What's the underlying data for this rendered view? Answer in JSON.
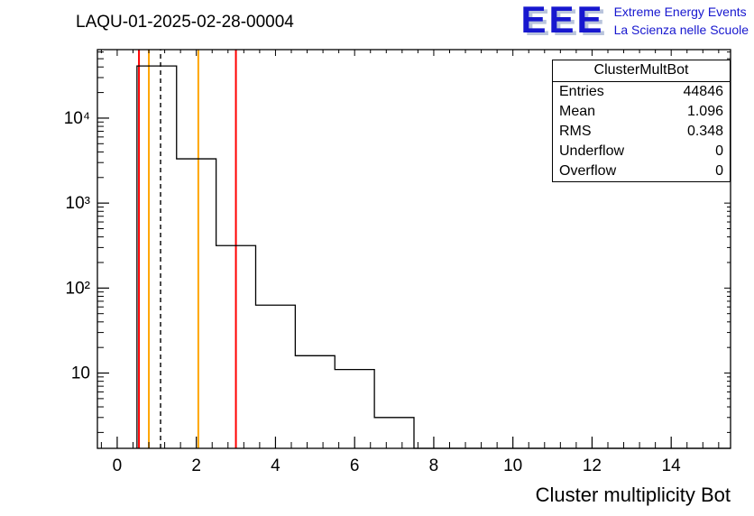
{
  "header": {
    "title": "LAQU-01-2025-02-28-00004",
    "logo": {
      "acronym": "EEE",
      "line1": "Extreme Energy Events",
      "line2": "La Scienza nelle Scuole",
      "color": "#1717cf"
    }
  },
  "stats": {
    "title": "ClusterMultBot",
    "rows": [
      {
        "label": "Entries",
        "value": "44846"
      },
      {
        "label": "Mean",
        "value": "1.096"
      },
      {
        "label": "RMS",
        "value": "0.348"
      },
      {
        "label": "Underflow",
        "value": "0"
      },
      {
        "label": "Overflow",
        "value": "0"
      }
    ]
  },
  "chart_data": {
    "type": "bar",
    "histogram": true,
    "title": "LAQU-01-2025-02-28-00004",
    "xlabel": "Cluster multiplicity Bot",
    "ylabel": "",
    "y_scale": "log",
    "xlim": [
      -0.5,
      15.5
    ],
    "ylim": [
      1.3,
      64000
    ],
    "bin_width": 1,
    "bin_centers": [
      1,
      2,
      3,
      4,
      5,
      6,
      7
    ],
    "values": [
      41100,
      3320,
      316,
      63,
      16,
      11,
      3
    ],
    "x_major_ticks": [
      0,
      2,
      4,
      6,
      8,
      10,
      12,
      14
    ],
    "x_minor_step": 0.4,
    "y_major_ticks": [
      10,
      100,
      1000,
      10000
    ],
    "grid": false,
    "line_color": "#000000",
    "marker_lines": [
      {
        "x": 0.55,
        "color": "#ff0000",
        "style": "solid"
      },
      {
        "x": 0.8,
        "color": "#ffa500",
        "style": "solid"
      },
      {
        "x": 1.096,
        "color": "#000000",
        "style": "dashed"
      },
      {
        "x": 2.05,
        "color": "#ffa500",
        "style": "solid"
      },
      {
        "x": 3.0,
        "color": "#ff0000",
        "style": "solid"
      }
    ]
  }
}
